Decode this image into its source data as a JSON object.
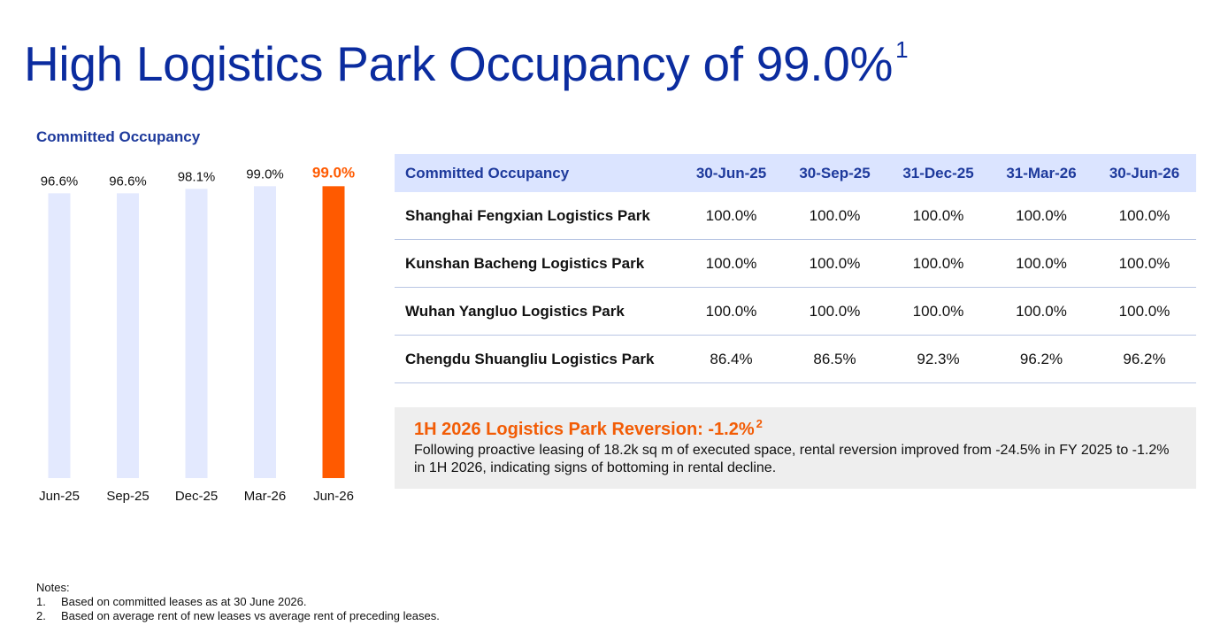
{
  "page": {
    "title": "High Logistics Park Occupancy of 99.0%",
    "title_sup": "1"
  },
  "chart_data": {
    "type": "bar",
    "title": "Committed Occupancy",
    "categories": [
      "Jun-25",
      "Sep-25",
      "Dec-25",
      "Mar-26",
      "Jun-26"
    ],
    "values": [
      96.6,
      96.6,
      98.1,
      99.0,
      99.0
    ],
    "labels": [
      "96.6%",
      "96.6%",
      "98.1%",
      "99.0%",
      "99.0%"
    ],
    "highlight_index": 4,
    "colors": {
      "bar": "#e3e9fe",
      "highlight": "#ff5a00",
      "highlight_label": "#ff5a00"
    },
    "ylim": [
      0,
      100
    ],
    "grid": false
  },
  "table": {
    "headers": [
      "Committed Occupancy",
      "30-Jun-25",
      "30-Sep-25",
      "31-Dec-25",
      "31-Mar-26",
      "30-Jun-26"
    ],
    "rows": [
      {
        "name": "Shanghai Fengxian Logistics Park",
        "values": [
          "100.0%",
          "100.0%",
          "100.0%",
          "100.0%",
          "100.0%"
        ]
      },
      {
        "name": "Kunshan Bacheng Logistics Park",
        "values": [
          "100.0%",
          "100.0%",
          "100.0%",
          "100.0%",
          "100.0%"
        ]
      },
      {
        "name": "Wuhan Yangluo Logistics Park",
        "values": [
          "100.0%",
          "100.0%",
          "100.0%",
          "100.0%",
          "100.0%"
        ]
      },
      {
        "name": "Chengdu Shuangliu Logistics Park",
        "values": [
          "86.4%",
          "86.5%",
          "92.3%",
          "96.2%",
          "96.2%"
        ]
      }
    ]
  },
  "reversion": {
    "title": "1H 2026 Logistics Park Reversion: -1.2%",
    "title_sup": "2",
    "body": "Following proactive leasing of 18.2k sq m of executed space, rental reversion improved from -24.5% in FY 2025 to -1.2% in 1H 2026, indicating signs of bottoming in rental decline."
  },
  "notes": {
    "heading": "Notes:",
    "items": [
      {
        "num": "1.",
        "text": "Based on committed leases as at 30 June 2026."
      },
      {
        "num": "2.",
        "text": "Based on average rent of new leases vs average rent of preceding leases."
      }
    ]
  },
  "colors": {
    "title": "#0b2c9f",
    "header_bg": "#dbe4ff",
    "accent": "#f25c05"
  }
}
